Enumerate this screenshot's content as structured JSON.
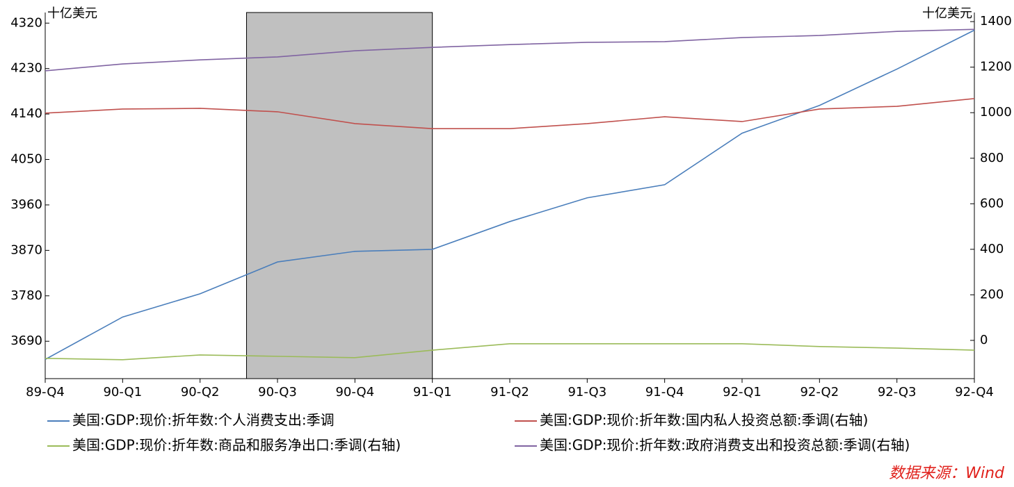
{
  "chart_data": {
    "type": "line",
    "y_unit": "十亿美元",
    "y2_unit": "十亿美元",
    "categories": [
      "89-Q4",
      "90-Q1",
      "90-Q2",
      "90-Q3",
      "90-Q4",
      "91-Q1",
      "91-Q2",
      "91-Q3",
      "91-Q4",
      "92-Q1",
      "92-Q2",
      "92-Q3",
      "92-Q4"
    ],
    "ylim": [
      3616,
      4341
    ],
    "yticks": [
      3690,
      3780,
      3870,
      3960,
      4050,
      4140,
      4230,
      4320
    ],
    "y2lim": [
      -168,
      1440
    ],
    "y2ticks": [
      0,
      200,
      400,
      600,
      800,
      1000,
      1200,
      1400
    ],
    "recession_shade": [
      2.6,
      5
    ],
    "shade_color": "#c0c0c0",
    "series": [
      {
        "name": "美国:GDP:现价:折年数:个人消费支出:季调",
        "color": "#4a7ebb",
        "values": [
          3654,
          3738,
          3784,
          3847,
          3868,
          3872,
          3927,
          3974,
          4000,
          4102,
          4157,
          4229,
          4306
        ]
      },
      {
        "name": "美国:GDP:现价:折年数:国内私人投资总额:季调(右轴)",
        "color": "#c0504d",
        "axis": "y2",
        "values": [
          998,
          1016,
          1019,
          1004,
          952,
          930,
          930,
          952,
          982,
          961,
          1016,
          1028,
          1062
        ]
      },
      {
        "name": "美国:GDP:现价:折年数:商品和服务净出口:季调(右轴)",
        "color": "#9bbb59",
        "axis": "y2",
        "values": [
          -79,
          -85,
          -64,
          -70,
          -76,
          -43,
          -15,
          -15,
          -15,
          -15,
          -27,
          -34,
          -43
        ]
      },
      {
        "name": "美国:GDP:现价:折年数:政府消费支出和投资总额:季调(右轴)",
        "color": "#8064a2",
        "axis": "y2",
        "values": [
          1184,
          1214,
          1232,
          1245,
          1272,
          1287,
          1299,
          1309,
          1312,
          1330,
          1339,
          1357,
          1366
        ]
      }
    ],
    "source": "数据来源：Wind"
  }
}
